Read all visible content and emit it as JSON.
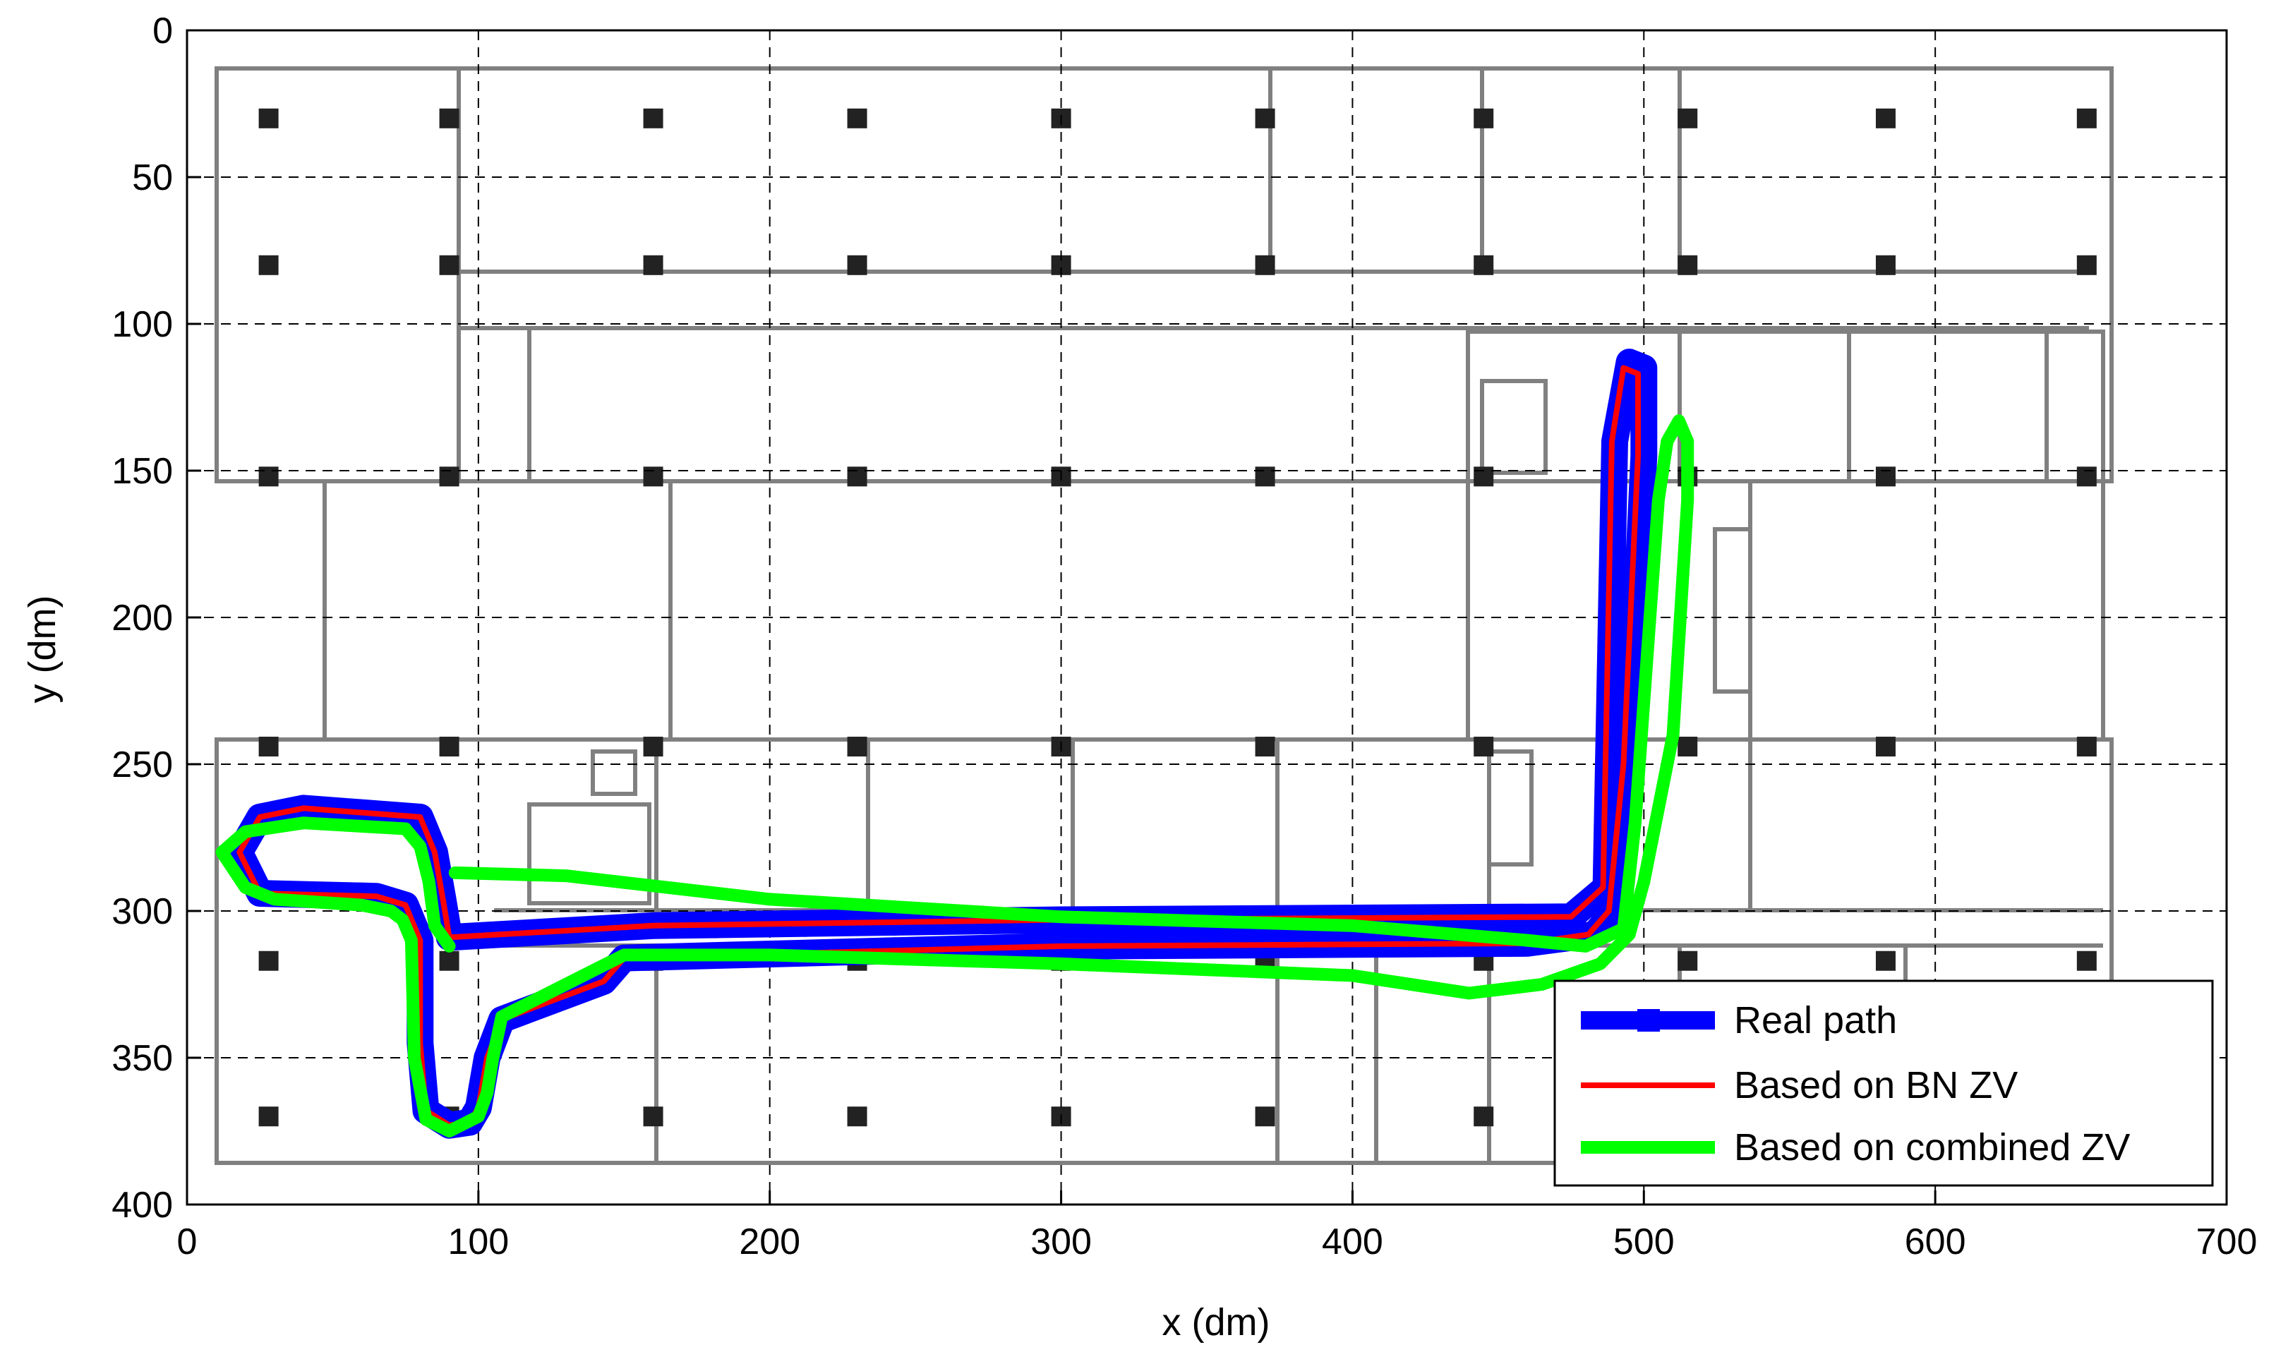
{
  "chart_data": {
    "type": "line",
    "title": "",
    "xlabel": "x (dm)",
    "ylabel": "y (dm)",
    "xlim": [
      0,
      700
    ],
    "ylim": [
      0,
      400
    ],
    "y_reversed": true,
    "grid": true,
    "grid_style": "dashed",
    "legend_position": "bottom-right",
    "x_ticks": [
      "0",
      "100",
      "200",
      "300",
      "400",
      "500",
      "600",
      "700"
    ],
    "y_ticks": [
      "0",
      "50",
      "100",
      "150",
      "200",
      "250",
      "300",
      "350",
      "400"
    ],
    "background_image": "building floor plan",
    "series": [
      {
        "name": "Real path",
        "color": "#0000ff",
        "x": [
          90,
          160,
          300,
          475,
          487,
          490,
          495,
          500,
          500,
          495,
          490,
          483,
          460,
          300,
          150,
          143,
          108,
          103,
          100,
          97,
          90,
          82,
          80,
          80,
          75,
          65,
          25,
          18,
          25,
          40,
          80,
          85,
          88,
          90
        ],
        "y": [
          309,
          305,
          303,
          302,
          292,
          140,
          113,
          115,
          145,
          250,
          300,
          308,
          311,
          312,
          316,
          324,
          337,
          350,
          367,
          372,
          373,
          368,
          345,
          310,
          298,
          295,
          294,
          280,
          268,
          265,
          268,
          280,
          297,
          309
        ]
      },
      {
        "name": "Based on BN ZV",
        "color": "#ff0000",
        "x": [
          90,
          160,
          300,
          475,
          486,
          489,
          493,
          498,
          498,
          493,
          488,
          481,
          460,
          300,
          150,
          143,
          108,
          103,
          100,
          97,
          90,
          82,
          80,
          80,
          75,
          65,
          25,
          18,
          25,
          40,
          80,
          85,
          88,
          90
        ],
        "y": [
          309,
          305,
          303,
          302,
          292,
          140,
          115,
          117,
          145,
          250,
          300,
          308,
          311,
          312,
          316,
          324,
          337,
          350,
          367,
          372,
          373,
          368,
          345,
          310,
          298,
          295,
          294,
          280,
          268,
          265,
          268,
          280,
          297,
          309
        ]
      },
      {
        "name": "Based on combined ZV",
        "color": "#00ff00",
        "x": [
          92,
          130,
          200,
          300,
          400,
          460,
          480,
          493,
          497,
          505,
          508,
          512,
          515,
          515,
          510,
          500,
          495,
          485,
          465,
          440,
          420,
          400,
          300,
          200,
          150,
          140,
          108,
          105,
          103,
          100,
          90,
          82,
          78,
          77,
          74,
          70,
          60,
          30,
          20,
          12,
          20,
          40,
          75,
          80,
          83,
          85,
          90
        ],
        "y": [
          287,
          288,
          296,
          302,
          305,
          310,
          312,
          306,
          270,
          160,
          140,
          133,
          140,
          160,
          240,
          290,
          308,
          318,
          325,
          328,
          325,
          322,
          318,
          315,
          315,
          320,
          336,
          350,
          362,
          370,
          375,
          371,
          350,
          310,
          303,
          300,
          298,
          296,
          292,
          280,
          273,
          270,
          272,
          278,
          290,
          305,
          312
        ]
      }
    ]
  }
}
